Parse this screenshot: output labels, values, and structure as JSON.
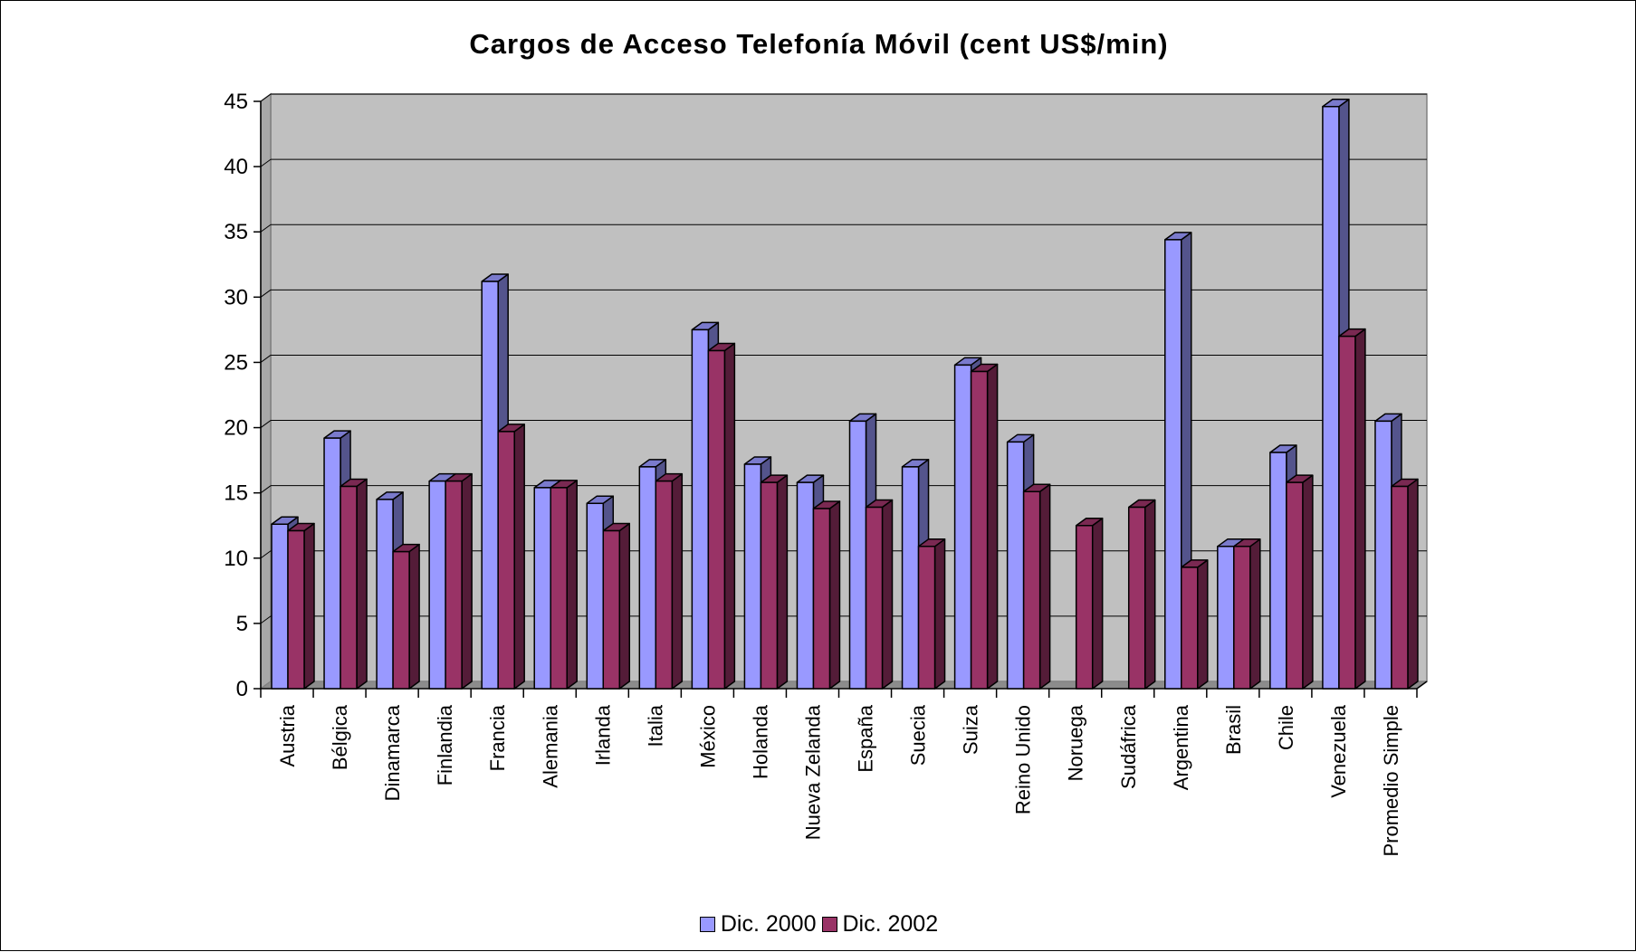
{
  "chart_data": {
    "type": "bar",
    "title": "Cargos de Acceso Telefonía Móvil (cent US$/min)",
    "xlabel": "",
    "ylabel": "",
    "ylim": [
      0,
      45
    ],
    "yticks": [
      0,
      5,
      10,
      15,
      20,
      25,
      30,
      35,
      40,
      45
    ],
    "grid": true,
    "legend_position": "bottom",
    "categories": [
      "Austria",
      "Bélgica",
      "Dinamarca",
      "Finlandia",
      "Francia",
      "Alemania",
      "Irlanda",
      "Italia",
      "México",
      "Holanda",
      "Nueva Zelanda",
      "España",
      "Suecia",
      "Suiza",
      "Reino Unido",
      "Noruega",
      "Sudáfrica",
      "Argentina",
      "Brasil",
      "Chile",
      "Venezuela",
      "Promedio Simple"
    ],
    "series": [
      {
        "name": "Dic. 2000",
        "color": "#9999FF",
        "values": [
          12.6,
          19.2,
          14.5,
          15.9,
          31.2,
          15.4,
          14.2,
          17.0,
          27.5,
          17.2,
          15.8,
          20.5,
          17.0,
          24.8,
          18.9,
          null,
          null,
          34.4,
          10.9,
          18.1,
          44.6,
          20.5
        ]
      },
      {
        "name": "Dic. 2002",
        "color": "#993366",
        "values": [
          12.1,
          15.5,
          10.5,
          15.9,
          19.7,
          15.4,
          12.1,
          15.9,
          25.9,
          15.8,
          13.8,
          13.9,
          10.9,
          24.3,
          15.1,
          12.5,
          13.9,
          9.3,
          10.9,
          15.8,
          27.0,
          15.5
        ]
      }
    ]
  }
}
